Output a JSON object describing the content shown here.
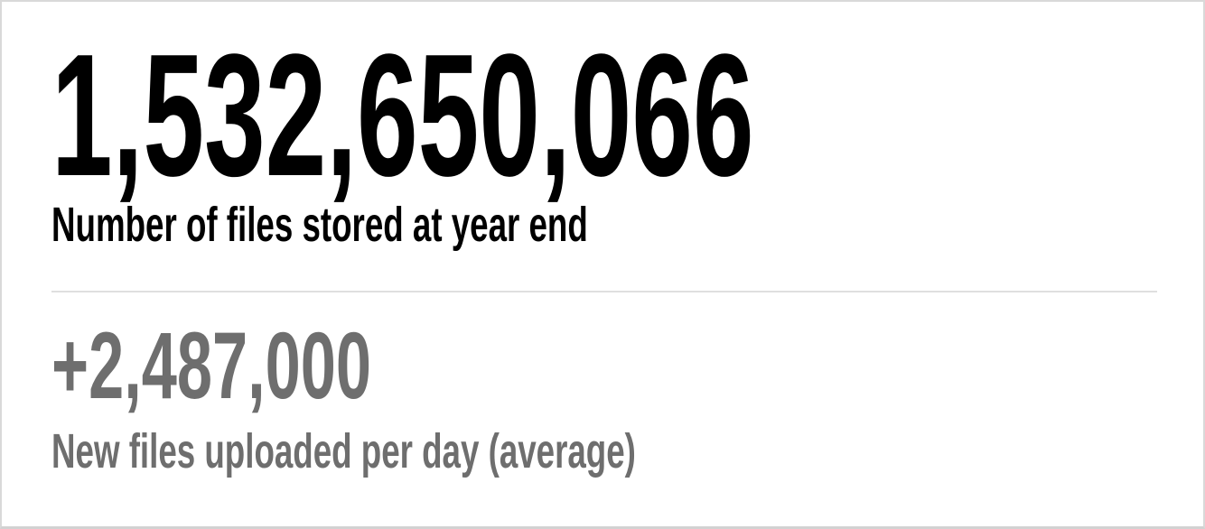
{
  "card": {
    "primary": {
      "value": "1,532,650,066",
      "label": "Number of files stored at year end"
    },
    "secondary": {
      "value": "+2,487,000",
      "label": "New files uploaded per day (average)"
    }
  },
  "colors": {
    "primary_text": "#000000",
    "secondary_text": "#6e6e6e",
    "divider": "#dfdfdf",
    "card_border": "#d9d9d9",
    "card_background": "#ffffff"
  },
  "chart_data": {
    "type": "table",
    "title": "",
    "stats": [
      {
        "value": 1532650066,
        "display": "1,532,650,066",
        "label": "Number of files stored at year end"
      },
      {
        "value": 2487000,
        "display": "+2,487,000",
        "label": "New files uploaded per day (average)"
      }
    ]
  }
}
